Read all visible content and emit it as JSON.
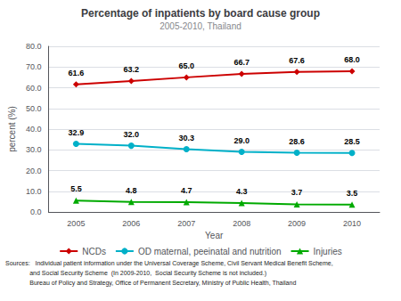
{
  "chart_data": {
    "type": "line",
    "title": "Percentage of inpatients by board cause group",
    "subtitle": "2005-2010, Thailand",
    "x_label": "Year",
    "y_label": "percent (%)",
    "categories": [
      "2005",
      "2006",
      "2007",
      "2008",
      "2009",
      "2010"
    ],
    "series": [
      {
        "name": "NCDs",
        "color": "#cc0000",
        "marker": "diamond",
        "values": [
          61.6,
          63.2,
          65.0,
          66.7,
          67.6,
          68.0
        ],
        "value_labels": [
          "61.6",
          "63.2",
          "65.0",
          "66.7",
          "67.6",
          "68.0"
        ]
      },
      {
        "name": "OD maternal, peeinatal and nutrition",
        "color": "#00b0c8",
        "marker": "circle",
        "values": [
          32.9,
          32.0,
          30.3,
          29.0,
          28.6,
          28.5
        ],
        "value_labels": [
          "32.9",
          "32.0",
          "30.3",
          "29.0",
          "28.6",
          "28.5"
        ]
      },
      {
        "name": "Injuries",
        "color": "#00aa00",
        "marker": "triangle",
        "values": [
          5.5,
          4.8,
          4.7,
          4.3,
          3.7,
          3.5
        ],
        "value_labels": [
          "5.5",
          "4.8",
          "4.7",
          "4.3",
          "3.7",
          "3.5"
        ]
      }
    ],
    "ylim": [
      0,
      80
    ],
    "yticks": [
      {
        "value": 0,
        "label": "0.0"
      },
      {
        "value": 10,
        "label": "10.0"
      },
      {
        "value": 20,
        "label": "20.0"
      },
      {
        "value": 30,
        "label": "30.0"
      },
      {
        "value": 40,
        "label": "40.0"
      },
      {
        "value": 50,
        "label": "50.0"
      },
      {
        "value": 60,
        "label": "60.0"
      },
      {
        "value": 70,
        "label": "70.0"
      },
      {
        "value": 80,
        "label": "80.0"
      }
    ],
    "grid": true,
    "legend": "bottom",
    "data_labels": true,
    "annotations": [
      "Sources:   Individual patient information under the Universal Coverage Scheme, Civil Servant Medical Benefit Scheme,",
      "              and Social Security Scheme  (In 2009-2010,  Social Security Scheme is not included.)",
      "              Bureau of Policy and Strategy, Office of Permanent Secretary, Ministry of Public Health, Thailand"
    ]
  }
}
